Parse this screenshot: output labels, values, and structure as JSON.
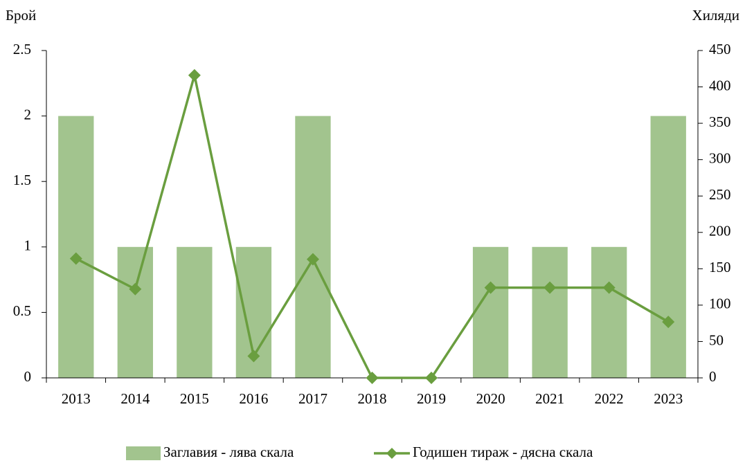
{
  "chart_data": {
    "type": "bar_line",
    "y_label": "Брой",
    "y2_label": "Хиляди",
    "categories": [
      "2013",
      "2014",
      "2015",
      "2016",
      "2017",
      "2018",
      "2019",
      "2020",
      "2021",
      "2022",
      "2023"
    ],
    "series": [
      {
        "name": "Заглавия - лява скала",
        "type": "bar",
        "color": "#a2c48e",
        "values": [
          2,
          1,
          1,
          1,
          2,
          0,
          0,
          1,
          1,
          1,
          2
        ]
      },
      {
        "name": "Годишен тираж - дясна скала",
        "type": "line",
        "axis": "y2",
        "color": "#6a9e3f",
        "values": [
          164,
          122,
          416,
          30,
          163,
          0,
          0,
          124,
          124,
          124,
          77
        ]
      }
    ],
    "ylim": [
      0,
      2.5
    ],
    "yticks": [
      0,
      0.5,
      1,
      1.5,
      2,
      2.5
    ],
    "y2lim": [
      0,
      450
    ],
    "y2ticks": [
      0,
      50,
      100,
      150,
      200,
      250,
      300,
      350,
      400,
      450
    ]
  }
}
